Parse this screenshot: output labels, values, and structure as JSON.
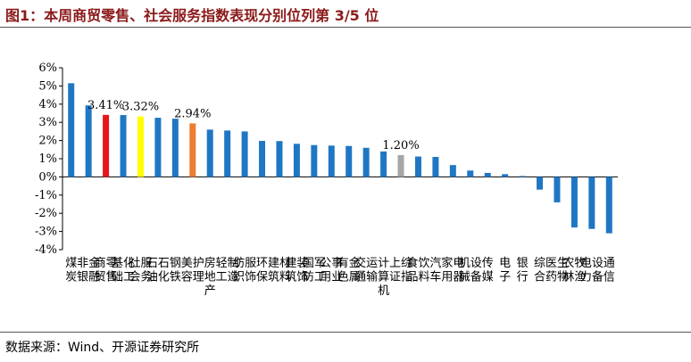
{
  "header": {
    "title": "图1：本周商贸零售、社会服务指数表现分别位列第 3/5 位"
  },
  "footer": {
    "source": "数据来源：Wind、开源证券研究所"
  },
  "colors": {
    "title": "#8b1a1a",
    "default_bar": "#1f77c4",
    "highlight_red": "#e8141a",
    "highlight_yellow": "#ffff00",
    "highlight_orange": "#ed7d31",
    "highlight_gray": "#a6a6a6"
  },
  "chart_data": {
    "type": "bar",
    "categories": [
      "煤炭",
      "非银金融",
      "商贸零售",
      "基础化工",
      "社会服务",
      "石油石化",
      "钢铁",
      "美容护理",
      "房地产",
      "轻工制造",
      "纺织服饰",
      "环保",
      "建筑材料",
      "建筑装饰",
      "国防军工",
      "公用事业",
      "有色金属",
      "交通运输",
      "计算机",
      "上证综指",
      "食品饮料",
      "汽车",
      "家用电器",
      "机械设备",
      "传媒",
      "电子",
      "银行",
      "综合",
      "医药生物",
      "农林牧渔",
      "电力设备",
      "通信"
    ],
    "values": [
      5.15,
      3.93,
      3.41,
      3.4,
      3.32,
      3.25,
      3.2,
      2.94,
      2.6,
      2.55,
      2.5,
      1.98,
      1.97,
      1.82,
      1.75,
      1.72,
      1.7,
      1.6,
      1.4,
      1.2,
      1.12,
      1.1,
      0.65,
      0.35,
      0.22,
      0.15,
      0.05,
      -0.7,
      -1.4,
      -2.78,
      -2.86,
      -3.1
    ],
    "bar_colors": [
      "default",
      "default",
      "red",
      "default",
      "yellow",
      "default",
      "default",
      "orange",
      "default",
      "default",
      "default",
      "default",
      "default",
      "default",
      "default",
      "default",
      "default",
      "default",
      "default",
      "gray",
      "default",
      "default",
      "default",
      "default",
      "default",
      "default",
      "default",
      "default",
      "default",
      "default",
      "default",
      "default"
    ],
    "data_labels": [
      {
        "index": 2,
        "text": "3.41%"
      },
      {
        "index": 4,
        "text": "3.32%"
      },
      {
        "index": 7,
        "text": "2.94%"
      },
      {
        "index": 19,
        "text": "1.20%"
      }
    ],
    "ylim": [
      -4,
      6
    ],
    "yticks": [
      6,
      5,
      4,
      3,
      2,
      1,
      0,
      -1,
      -2,
      -3,
      -4
    ],
    "ytick_labels": [
      "6%",
      "5%",
      "4%",
      "3%",
      "2%",
      "1%",
      "0%",
      "-1%",
      "-2%",
      "-3%",
      "-4%"
    ],
    "title": "",
    "xlabel": "",
    "ylabel": "",
    "grid": false,
    "legend": "none"
  }
}
